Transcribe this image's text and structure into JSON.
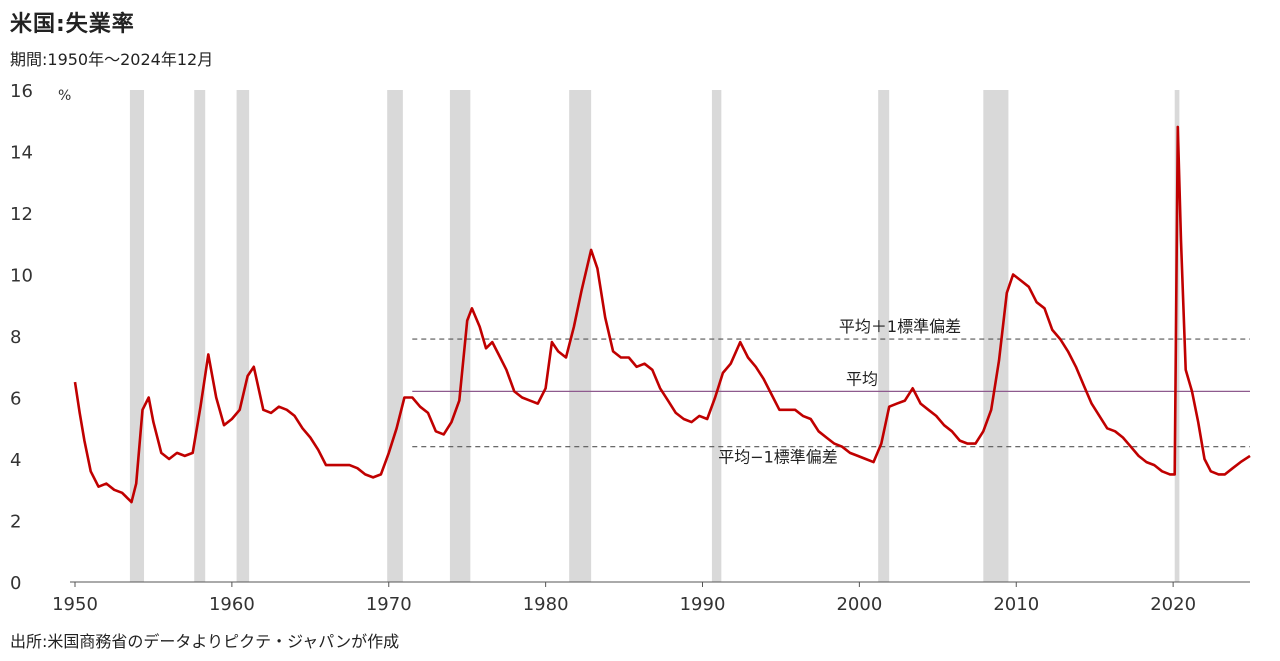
{
  "header": {
    "title": "米国:失業率",
    "subtitle": "期間:1950年～2024年12月"
  },
  "footer": {
    "source": "出所:米国商務省のデータよりピクテ・ジャパンが作成"
  },
  "chart_data": {
    "type": "line",
    "title": "米国:失業率",
    "ylabel": "",
    "unit_label": "%",
    "xlim": [
      1950,
      2024.9
    ],
    "ylim": [
      0,
      16
    ],
    "x_ticks": [
      1950,
      1960,
      1970,
      1980,
      1990,
      2000,
      2010,
      2020
    ],
    "y_ticks": [
      0,
      2,
      4,
      6,
      8,
      10,
      12,
      14,
      16
    ],
    "line_color": "#c00000",
    "recession_color": "#d9d9d9",
    "recessions": [
      [
        1953.5,
        1954.4
      ],
      [
        1957.6,
        1958.3
      ],
      [
        1960.3,
        1961.1
      ],
      [
        1969.9,
        1970.9
      ],
      [
        1973.9,
        1975.2
      ],
      [
        1981.5,
        1982.9
      ],
      [
        1990.6,
        1991.2
      ],
      [
        2001.2,
        2001.9
      ],
      [
        2007.9,
        2009.5
      ],
      [
        2020.1,
        2020.4
      ]
    ],
    "reference_lines": [
      {
        "label": "平均＋1標準偏差",
        "value": 7.9,
        "style": "dashed",
        "color": "#555555",
        "start": 1971.5
      },
      {
        "label": "平均",
        "value": 6.2,
        "style": "solid",
        "color": "#8e5a8e",
        "start": 1971.5
      },
      {
        "label": "平均−1標準偏差",
        "value": 4.4,
        "style": "dashed",
        "color": "#555555",
        "start": 1971.5
      }
    ],
    "series": [
      {
        "values": [
          [
            1950.0,
            6.5
          ],
          [
            1950.3,
            5.5
          ],
          [
            1950.6,
            4.6
          ],
          [
            1951.0,
            3.6
          ],
          [
            1951.5,
            3.1
          ],
          [
            1952.0,
            3.2
          ],
          [
            1952.5,
            3.0
          ],
          [
            1953.0,
            2.9
          ],
          [
            1953.6,
            2.6
          ],
          [
            1953.9,
            3.2
          ],
          [
            1954.3,
            5.6
          ],
          [
            1954.7,
            6.0
          ],
          [
            1955.0,
            5.2
          ],
          [
            1955.5,
            4.2
          ],
          [
            1956.0,
            4.0
          ],
          [
            1956.5,
            4.2
          ],
          [
            1957.0,
            4.1
          ],
          [
            1957.5,
            4.2
          ],
          [
            1958.0,
            5.7
          ],
          [
            1958.5,
            7.4
          ],
          [
            1959.0,
            6.0
          ],
          [
            1959.5,
            5.1
          ],
          [
            1960.0,
            5.3
          ],
          [
            1960.5,
            5.6
          ],
          [
            1961.0,
            6.7
          ],
          [
            1961.4,
            7.0
          ],
          [
            1962.0,
            5.6
          ],
          [
            1962.5,
            5.5
          ],
          [
            1963.0,
            5.7
          ],
          [
            1963.5,
            5.6
          ],
          [
            1964.0,
            5.4
          ],
          [
            1964.5,
            5.0
          ],
          [
            1965.0,
            4.7
          ],
          [
            1965.5,
            4.3
          ],
          [
            1966.0,
            3.8
          ],
          [
            1966.5,
            3.8
          ],
          [
            1967.0,
            3.8
          ],
          [
            1967.5,
            3.8
          ],
          [
            1968.0,
            3.7
          ],
          [
            1968.5,
            3.5
          ],
          [
            1969.0,
            3.4
          ],
          [
            1969.5,
            3.5
          ],
          [
            1970.0,
            4.2
          ],
          [
            1970.5,
            5.0
          ],
          [
            1971.0,
            6.0
          ],
          [
            1971.5,
            6.0
          ],
          [
            1972.0,
            5.7
          ],
          [
            1972.5,
            5.5
          ],
          [
            1973.0,
            4.9
          ],
          [
            1973.5,
            4.8
          ],
          [
            1974.0,
            5.2
          ],
          [
            1974.5,
            5.9
          ],
          [
            1975.0,
            8.5
          ],
          [
            1975.3,
            8.9
          ],
          [
            1975.8,
            8.3
          ],
          [
            1976.2,
            7.6
          ],
          [
            1976.6,
            7.8
          ],
          [
            1977.0,
            7.4
          ],
          [
            1977.5,
            6.9
          ],
          [
            1978.0,
            6.2
          ],
          [
            1978.5,
            6.0
          ],
          [
            1979.0,
            5.9
          ],
          [
            1979.5,
            5.8
          ],
          [
            1980.0,
            6.3
          ],
          [
            1980.4,
            7.8
          ],
          [
            1980.8,
            7.5
          ],
          [
            1981.3,
            7.3
          ],
          [
            1981.8,
            8.3
          ],
          [
            1982.3,
            9.5
          ],
          [
            1982.9,
            10.8
          ],
          [
            1983.3,
            10.2
          ],
          [
            1983.8,
            8.6
          ],
          [
            1984.3,
            7.5
          ],
          [
            1984.8,
            7.3
          ],
          [
            1985.3,
            7.3
          ],
          [
            1985.8,
            7.0
          ],
          [
            1986.3,
            7.1
          ],
          [
            1986.8,
            6.9
          ],
          [
            1987.3,
            6.3
          ],
          [
            1987.8,
            5.9
          ],
          [
            1988.3,
            5.5
          ],
          [
            1988.8,
            5.3
          ],
          [
            1989.3,
            5.2
          ],
          [
            1989.8,
            5.4
          ],
          [
            1990.3,
            5.3
          ],
          [
            1990.8,
            6.0
          ],
          [
            1991.3,
            6.8
          ],
          [
            1991.8,
            7.1
          ],
          [
            1992.4,
            7.8
          ],
          [
            1992.9,
            7.3
          ],
          [
            1993.4,
            7.0
          ],
          [
            1993.9,
            6.6
          ],
          [
            1994.4,
            6.1
          ],
          [
            1994.9,
            5.6
          ],
          [
            1995.4,
            5.6
          ],
          [
            1995.9,
            5.6
          ],
          [
            1996.4,
            5.4
          ],
          [
            1996.9,
            5.3
          ],
          [
            1997.4,
            4.9
          ],
          [
            1997.9,
            4.7
          ],
          [
            1998.4,
            4.5
          ],
          [
            1998.9,
            4.4
          ],
          [
            1999.4,
            4.2
          ],
          [
            1999.9,
            4.1
          ],
          [
            2000.4,
            4.0
          ],
          [
            2000.9,
            3.9
          ],
          [
            2001.4,
            4.5
          ],
          [
            2001.9,
            5.7
          ],
          [
            2002.4,
            5.8
          ],
          [
            2002.9,
            5.9
          ],
          [
            2003.4,
            6.3
          ],
          [
            2003.9,
            5.8
          ],
          [
            2004.4,
            5.6
          ],
          [
            2004.9,
            5.4
          ],
          [
            2005.4,
            5.1
          ],
          [
            2005.9,
            4.9
          ],
          [
            2006.4,
            4.6
          ],
          [
            2006.9,
            4.5
          ],
          [
            2007.4,
            4.5
          ],
          [
            2007.9,
            4.9
          ],
          [
            2008.4,
            5.6
          ],
          [
            2008.9,
            7.2
          ],
          [
            2009.4,
            9.4
          ],
          [
            2009.8,
            10.0
          ],
          [
            2010.3,
            9.8
          ],
          [
            2010.8,
            9.6
          ],
          [
            2011.3,
            9.1
          ],
          [
            2011.8,
            8.9
          ],
          [
            2012.3,
            8.2
          ],
          [
            2012.8,
            7.9
          ],
          [
            2013.3,
            7.5
          ],
          [
            2013.8,
            7.0
          ],
          [
            2014.3,
            6.4
          ],
          [
            2014.8,
            5.8
          ],
          [
            2015.3,
            5.4
          ],
          [
            2015.8,
            5.0
          ],
          [
            2016.3,
            4.9
          ],
          [
            2016.8,
            4.7
          ],
          [
            2017.3,
            4.4
          ],
          [
            2017.8,
            4.1
          ],
          [
            2018.3,
            3.9
          ],
          [
            2018.8,
            3.8
          ],
          [
            2019.3,
            3.6
          ],
          [
            2019.8,
            3.5
          ],
          [
            2020.1,
            3.5
          ],
          [
            2020.3,
            14.8
          ],
          [
            2020.5,
            11.1
          ],
          [
            2020.8,
            6.9
          ],
          [
            2021.2,
            6.2
          ],
          [
            2021.6,
            5.2
          ],
          [
            2022.0,
            4.0
          ],
          [
            2022.4,
            3.6
          ],
          [
            2022.9,
            3.5
          ],
          [
            2023.3,
            3.5
          ],
          [
            2023.8,
            3.7
          ],
          [
            2024.3,
            3.9
          ],
          [
            2024.9,
            4.1
          ]
        ]
      }
    ]
  }
}
